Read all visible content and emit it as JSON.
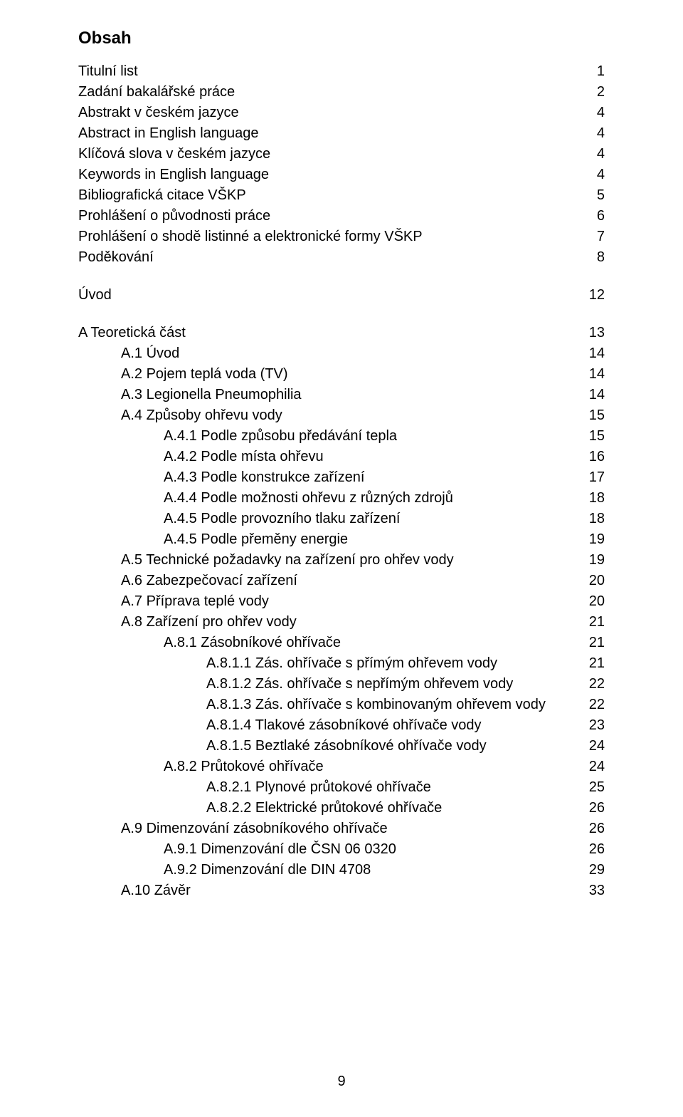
{
  "title": "Obsah",
  "footer": "9",
  "rows": [
    {
      "label": "Titulní list",
      "page": "1",
      "indent": 0
    },
    {
      "label": "Zadání bakalářské práce",
      "page": "2",
      "indent": 0
    },
    {
      "label": "Abstrakt v českém jazyce",
      "page": "4",
      "indent": 0
    },
    {
      "label": "Abstract in English language",
      "page": "4",
      "indent": 0
    },
    {
      "label": "Klíčová slova v českém jazyce",
      "page": "4",
      "indent": 0
    },
    {
      "label": "Keywords in English language",
      "page": "4",
      "indent": 0
    },
    {
      "label": "Bibliografická citace VŠKP",
      "page": "5",
      "indent": 0
    },
    {
      "label": "Prohlášení o původnosti práce",
      "page": "6",
      "indent": 0
    },
    {
      "label": "Prohlášení o shodě listinné a elektronické formy VŠKP",
      "page": "7",
      "indent": 0
    },
    {
      "label": "Poděkování",
      "page": "8",
      "indent": 0
    },
    {
      "gap": true
    },
    {
      "label": "Úvod",
      "page": "12",
      "indent": 0
    },
    {
      "gap": true
    },
    {
      "label": "A Teoretická část",
      "page": "13",
      "indent": 0
    },
    {
      "label": "A.1 Úvod",
      "page": "14",
      "indent": 1
    },
    {
      "label": "A.2 Pojem teplá voda (TV)",
      "page": "14",
      "indent": 1
    },
    {
      "label": "A.3 Legionella Pneumophilia",
      "page": "14",
      "indent": 1
    },
    {
      "label": "A.4 Způsoby ohřevu vody",
      "page": "15",
      "indent": 1
    },
    {
      "label": "A.4.1 Podle způsobu předávání tepla",
      "page": "15",
      "indent": 2
    },
    {
      "label": "A.4.2 Podle místa ohřevu",
      "page": "16",
      "indent": 2
    },
    {
      "label": "A.4.3 Podle konstrukce zařízení",
      "page": "17",
      "indent": 2
    },
    {
      "label": "A.4.4 Podle možnosti ohřevu z různých zdrojů",
      "page": "18",
      "indent": 2
    },
    {
      "label": "A.4.5 Podle provozního tlaku zařízení",
      "page": "18",
      "indent": 2
    },
    {
      "label": "A.4.5 Podle přeměny energie",
      "page": "19",
      "indent": 2
    },
    {
      "label": "A.5 Technické požadavky na zařízení pro ohřev vody",
      "page": "19",
      "indent": 1
    },
    {
      "label": "A.6 Zabezpečovací zařízení",
      "page": "20",
      "indent": 1
    },
    {
      "label": "A.7 Příprava teplé vody",
      "page": "20",
      "indent": 1
    },
    {
      "label": "A.8 Zařízení pro ohřev vody",
      "page": "21",
      "indent": 1
    },
    {
      "label": "A.8.1 Zásobníkové ohřívače",
      "page": "21",
      "indent": 2
    },
    {
      "label": "A.8.1.1 Zás. ohřívače s přímým ohřevem vody",
      "page": "21",
      "indent": 3
    },
    {
      "label": "A.8.1.2 Zás. ohřívače s nepřímým ohřevem vody",
      "page": "22",
      "indent": 3
    },
    {
      "label": "A.8.1.3 Zás. ohřívače s kombinovaným ohřevem vody",
      "page": "22",
      "indent": 3
    },
    {
      "label": "A.8.1.4 Tlakové zásobníkové ohřívače vody",
      "page": "23",
      "indent": 3
    },
    {
      "label": "A.8.1.5 Beztlaké zásobníkové ohřívače vody",
      "page": "24",
      "indent": 3
    },
    {
      "label": "A.8.2 Průtokové ohřívače",
      "page": "24",
      "indent": 2
    },
    {
      "label": "A.8.2.1 Plynové průtokové ohřívače",
      "page": "25",
      "indent": 3
    },
    {
      "label": "A.8.2.2 Elektrické průtokové ohřívače",
      "page": "26",
      "indent": 3
    },
    {
      "label": "A.9 Dimenzování zásobníkového ohřívače",
      "page": "26",
      "indent": 1
    },
    {
      "label": "A.9.1 Dimenzování dle ČSN 06 0320",
      "page": "26",
      "indent": 2
    },
    {
      "label": "A.9.2 Dimenzování dle DIN 4708",
      "page": "29",
      "indent": 2
    },
    {
      "label": "A.10 Závěr",
      "page": "33",
      "indent": 1
    }
  ]
}
